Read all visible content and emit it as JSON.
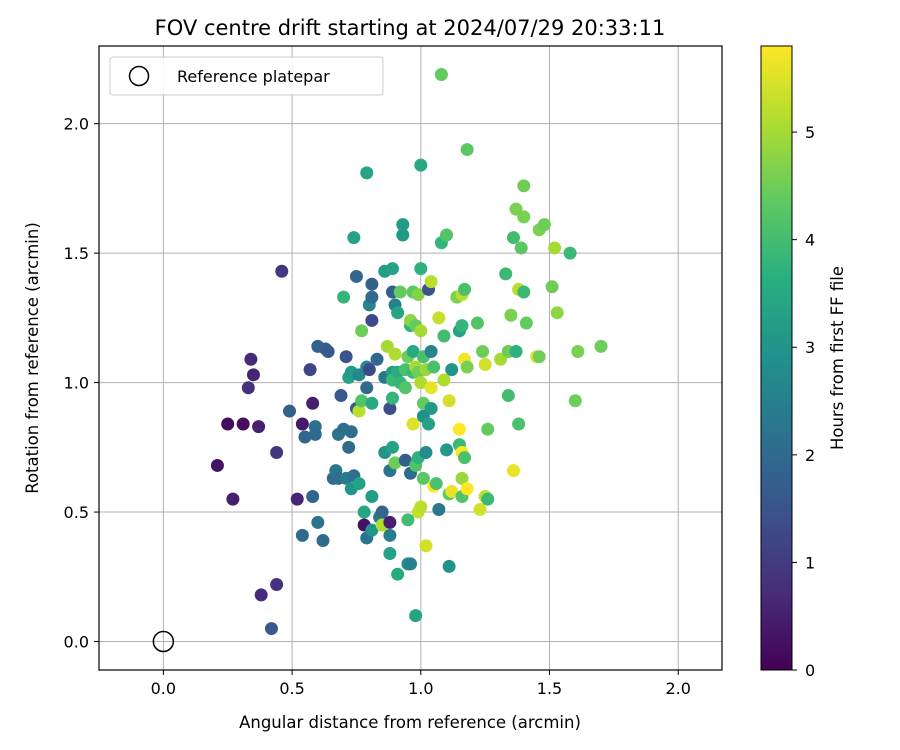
{
  "chart_data": {
    "type": "scatter",
    "title": "FOV centre drift starting at 2024/07/29 20:33:11",
    "xlabel": "Angular distance from reference (arcmin)",
    "ylabel": "Rotation from reference (arcmin)",
    "xlim": [
      -0.25,
      2.17
    ],
    "ylim": [
      -0.11,
      2.3
    ],
    "xticks": [
      "0.0",
      "0.5",
      "1.0",
      "1.5",
      "2.0"
    ],
    "yticks": [
      "0.0",
      "0.5",
      "1.0",
      "1.5",
      "2.0"
    ],
    "grid": true,
    "legend": {
      "placement": "top-left",
      "entries": [
        "Reference platepar"
      ]
    },
    "colorbar": {
      "label": "Hours from first FF file",
      "range": [
        0,
        5.8
      ],
      "ticks": [
        "0",
        "1",
        "2",
        "3",
        "4",
        "5"
      ],
      "colormap": "viridis"
    },
    "reference_point": {
      "name": "Reference platepar",
      "x": 0.0,
      "y": 0.0
    },
    "points": [
      [
        0.21,
        0.68,
        0.3
      ],
      [
        0.25,
        0.84,
        0.2
      ],
      [
        0.27,
        0.55,
        0.5
      ],
      [
        0.31,
        0.84,
        0.2
      ],
      [
        0.33,
        0.98,
        0.8
      ],
      [
        0.34,
        1.09,
        0.7
      ],
      [
        0.35,
        1.03,
        0.6
      ],
      [
        0.37,
        0.83,
        0.5
      ],
      [
        0.38,
        0.18,
        0.7
      ],
      [
        0.42,
        0.05,
        1.6
      ],
      [
        0.44,
        0.73,
        0.9
      ],
      [
        0.44,
        0.22,
        0.8
      ],
      [
        0.46,
        1.43,
        0.9
      ],
      [
        0.49,
        0.89,
        1.8
      ],
      [
        0.52,
        0.55,
        0.6
      ],
      [
        0.54,
        0.84,
        0.4
      ],
      [
        0.54,
        0.41,
        2.0
      ],
      [
        0.55,
        0.79,
        1.9
      ],
      [
        0.57,
        1.05,
        1.2
      ],
      [
        0.58,
        0.56,
        1.9
      ],
      [
        0.58,
        0.92,
        0.5
      ],
      [
        0.59,
        0.83,
        2.1
      ],
      [
        0.59,
        0.8,
        2.0
      ],
      [
        0.6,
        0.46,
        2.2
      ],
      [
        0.6,
        1.14,
        1.8
      ],
      [
        0.62,
        0.39,
        2.0
      ],
      [
        0.63,
        1.13,
        1.7
      ],
      [
        0.64,
        1.12,
        1.6
      ],
      [
        0.66,
        0.63,
        2.0
      ],
      [
        0.67,
        0.66,
        2.3
      ],
      [
        0.68,
        0.8,
        2.2
      ],
      [
        0.68,
        0.63,
        2.1
      ],
      [
        0.69,
        0.95,
        1.6
      ],
      [
        0.7,
        0.82,
        2.1
      ],
      [
        0.7,
        1.33,
        3.8
      ],
      [
        0.71,
        0.63,
        2.4
      ],
      [
        0.71,
        1.1,
        1.5
      ],
      [
        0.72,
        1.02,
        3.3
      ],
      [
        0.72,
        0.75,
        2.0
      ],
      [
        0.73,
        0.81,
        2.1
      ],
      [
        0.73,
        1.04,
        3.1
      ],
      [
        0.73,
        0.59,
        3.0
      ],
      [
        0.74,
        1.56,
        3.3
      ],
      [
        0.74,
        0.64,
        2.1
      ],
      [
        0.75,
        1.41,
        1.9
      ],
      [
        0.75,
        0.9,
        1.8
      ],
      [
        0.76,
        1.03,
        2.7
      ],
      [
        0.76,
        0.61,
        3.3
      ],
      [
        0.76,
        0.89,
        5.2
      ],
      [
        0.77,
        1.2,
        4.5
      ],
      [
        0.77,
        0.93,
        4.2
      ],
      [
        0.78,
        0.45,
        0.3
      ],
      [
        0.78,
        0.5,
        3.4
      ],
      [
        0.79,
        1.06,
        2.8
      ],
      [
        0.79,
        0.98,
        2.0
      ],
      [
        0.79,
        0.4,
        2.2
      ],
      [
        0.79,
        1.81,
        3.4
      ],
      [
        0.8,
        1.05,
        1.3
      ],
      [
        0.8,
        1.3,
        2.6
      ],
      [
        0.81,
        0.92,
        3.5
      ],
      [
        0.81,
        1.38,
        1.8
      ],
      [
        0.81,
        1.33,
        2.0
      ],
      [
        0.81,
        1.24,
        1.3
      ],
      [
        0.81,
        0.56,
        3.2
      ],
      [
        0.81,
        0.43,
        3.0
      ],
      [
        0.83,
        1.09,
        1.9
      ],
      [
        0.84,
        0.48,
        2.3
      ],
      [
        0.85,
        0.5,
        1.9
      ],
      [
        0.85,
        0.45,
        5.1
      ],
      [
        0.86,
        1.02,
        2.3
      ],
      [
        0.86,
        0.73,
        3.0
      ],
      [
        0.86,
        1.43,
        3.2
      ],
      [
        0.87,
        1.14,
        5.0
      ],
      [
        0.88,
        0.46,
        0.5
      ],
      [
        0.88,
        0.9,
        1.4
      ],
      [
        0.88,
        0.66,
        2.2
      ],
      [
        0.88,
        0.41,
        2.4
      ],
      [
        0.88,
        0.34,
        3.3
      ],
      [
        0.89,
        1.35,
        1.8
      ],
      [
        0.89,
        1.44,
        3.3
      ],
      [
        0.89,
        1.04,
        3.2
      ],
      [
        0.89,
        0.94,
        3.8
      ],
      [
        0.89,
        0.75,
        3.3
      ],
      [
        0.89,
        1.01,
        3.9
      ],
      [
        0.9,
        1.3,
        2.5
      ],
      [
        0.9,
        0.69,
        4.5
      ],
      [
        0.9,
        1.11,
        5.1
      ],
      [
        0.91,
        1.27,
        3.4
      ],
      [
        0.91,
        1.04,
        3.6
      ],
      [
        0.91,
        0.26,
        3.5
      ],
      [
        0.92,
        1.0,
        3.8
      ],
      [
        0.92,
        1.35,
        4.4
      ],
      [
        0.93,
        1.57,
        3.1
      ],
      [
        0.93,
        1.61,
        3.2
      ],
      [
        0.94,
        1.05,
        4.1
      ],
      [
        0.94,
        0.7,
        1.8
      ],
      [
        0.94,
        0.98,
        4.2
      ],
      [
        0.95,
        1.1,
        4.5
      ],
      [
        0.95,
        0.3,
        2.9
      ],
      [
        0.95,
        0.47,
        4.0
      ],
      [
        0.96,
        0.3,
        2.5
      ],
      [
        0.96,
        1.22,
        3.7
      ],
      [
        0.96,
        0.65,
        2.0
      ],
      [
        0.96,
        1.24,
        4.8
      ],
      [
        0.97,
        1.12,
        3.5
      ],
      [
        0.97,
        1.35,
        4.3
      ],
      [
        0.97,
        0.84,
        5.5
      ],
      [
        0.97,
        1.04,
        3.9
      ],
      [
        0.98,
        0.1,
        3.4
      ],
      [
        0.98,
        0.68,
        4.2
      ],
      [
        0.98,
        1.06,
        5.0
      ],
      [
        0.98,
        1.22,
        4.4
      ],
      [
        0.99,
        1.34,
        4.7
      ],
      [
        0.99,
        0.71,
        3.7
      ],
      [
        0.99,
        0.5,
        5.3
      ],
      [
        0.99,
        1.04,
        4.5
      ],
      [
        1.0,
        1.44,
        3.7
      ],
      [
        1.0,
        0.52,
        5.2
      ],
      [
        1.0,
        1.0,
        5.1
      ],
      [
        1.0,
        1.2,
        5.0
      ],
      [
        1.0,
        1.84,
        3.5
      ],
      [
        1.01,
        0.92,
        4.4
      ],
      [
        1.01,
        1.1,
        4.1
      ],
      [
        1.01,
        0.87,
        2.9
      ],
      [
        1.01,
        0.63,
        4.3
      ],
      [
        1.02,
        0.73,
        2.8
      ],
      [
        1.02,
        1.05,
        4.9
      ],
      [
        1.02,
        0.37,
        5.4
      ],
      [
        1.03,
        1.36,
        1.5
      ],
      [
        1.03,
        0.84,
        3.3
      ],
      [
        1.04,
        1.39,
        5.2
      ],
      [
        1.04,
        0.9,
        3.1
      ],
      [
        1.04,
        1.12,
        2.6
      ],
      [
        1.04,
        0.98,
        5.6
      ],
      [
        1.05,
        0.6,
        5.8
      ],
      [
        1.05,
        1.06,
        4.1
      ],
      [
        1.06,
        0.61,
        4.1
      ],
      [
        1.07,
        1.25,
        5.3
      ],
      [
        1.07,
        0.51,
        2.3
      ],
      [
        1.08,
        2.19,
        4.4
      ],
      [
        1.08,
        1.54,
        3.8
      ],
      [
        1.09,
        1.18,
        4.0
      ],
      [
        1.09,
        1.01,
        5.1
      ],
      [
        1.1,
        1.57,
        4.2
      ],
      [
        1.1,
        0.74,
        3.1
      ],
      [
        1.11,
        0.93,
        5.4
      ],
      [
        1.11,
        0.57,
        4.3
      ],
      [
        1.11,
        0.29,
        3.0
      ],
      [
        1.12,
        0.58,
        5.6
      ],
      [
        1.12,
        1.05,
        3.0
      ],
      [
        1.14,
        1.33,
        4.6
      ],
      [
        1.15,
        1.2,
        3.3
      ],
      [
        1.15,
        0.82,
        5.8
      ],
      [
        1.15,
        0.76,
        3.9
      ],
      [
        1.16,
        1.34,
        5.2
      ],
      [
        1.16,
        0.73,
        5.8
      ],
      [
        1.16,
        0.63,
        4.9
      ],
      [
        1.16,
        0.56,
        4.2
      ],
      [
        1.16,
        1.22,
        3.8
      ],
      [
        1.17,
        1.36,
        4.1
      ],
      [
        1.17,
        1.09,
        5.7
      ],
      [
        1.17,
        0.71,
        4.1
      ],
      [
        1.18,
        0.59,
        5.9
      ],
      [
        1.18,
        1.9,
        4.3
      ],
      [
        1.18,
        1.06,
        4.6
      ],
      [
        1.22,
        1.23,
        4.2
      ],
      [
        1.23,
        0.51,
        5.4
      ],
      [
        1.24,
        1.12,
        4.5
      ],
      [
        1.25,
        0.56,
        5.2
      ],
      [
        1.25,
        1.07,
        5.4
      ],
      [
        1.26,
        0.55,
        3.9
      ],
      [
        1.26,
        0.82,
        4.4
      ],
      [
        1.31,
        1.09,
        5.0
      ],
      [
        1.33,
        1.42,
        3.9
      ],
      [
        1.34,
        1.12,
        4.7
      ],
      [
        1.34,
        1.12,
        4.5
      ],
      [
        1.34,
        0.95,
        4.0
      ],
      [
        1.35,
        1.26,
        4.6
      ],
      [
        1.36,
        1.56,
        4.0
      ],
      [
        1.36,
        0.66,
        5.6
      ],
      [
        1.37,
        1.12,
        3.7
      ],
      [
        1.37,
        1.67,
        4.6
      ],
      [
        1.38,
        0.84,
        4.1
      ],
      [
        1.38,
        1.36,
        5.2
      ],
      [
        1.39,
        1.52,
        4.3
      ],
      [
        1.4,
        1.35,
        3.9
      ],
      [
        1.4,
        1.64,
        4.6
      ],
      [
        1.4,
        1.76,
        4.5
      ],
      [
        1.41,
        1.23,
        4.4
      ],
      [
        1.45,
        1.1,
        5.5
      ],
      [
        1.46,
        1.59,
        4.6
      ],
      [
        1.46,
        1.1,
        4.5
      ],
      [
        1.48,
        1.61,
        4.5
      ],
      [
        1.51,
        1.37,
        4.5
      ],
      [
        1.52,
        1.52,
        5.0
      ],
      [
        1.53,
        1.27,
        4.8
      ],
      [
        1.58,
        1.5,
        3.9
      ],
      [
        1.6,
        0.93,
        4.5
      ],
      [
        1.61,
        1.12,
        4.6
      ],
      [
        1.7,
        1.14,
        4.5
      ]
    ]
  }
}
